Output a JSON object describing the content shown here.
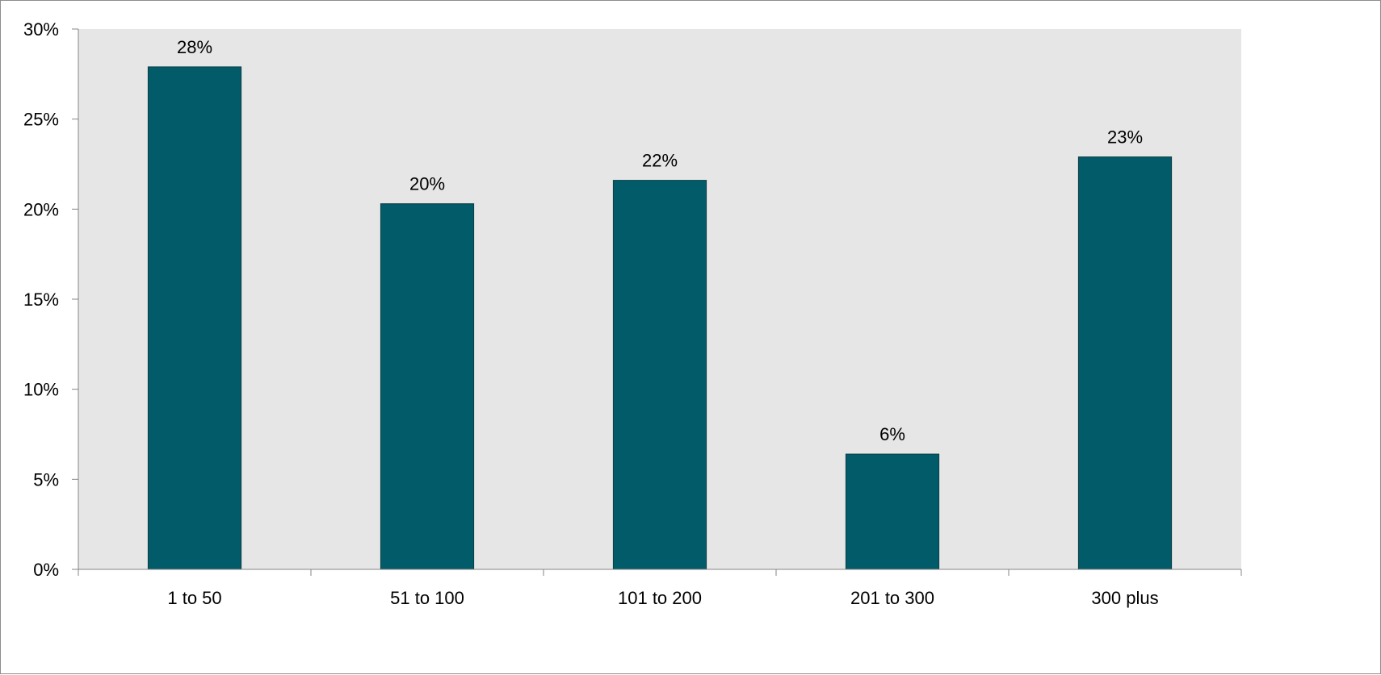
{
  "chart_data": {
    "type": "bar",
    "categories": [
      "1 to 50",
      "51 to 100",
      "101 to 200",
      "201 to 300",
      "300 plus"
    ],
    "values": [
      27.9,
      20.3,
      21.6,
      6.4,
      22.9
    ],
    "data_labels": [
      "28%",
      "20%",
      "22%",
      "6%",
      "23%"
    ],
    "title": "",
    "xlabel": "",
    "ylabel": "",
    "ylim": [
      0,
      30
    ],
    "y_ticks": [
      0,
      5,
      10,
      15,
      20,
      25,
      30
    ],
    "y_tick_labels": [
      "0%",
      "5%",
      "10%",
      "15%",
      "20%",
      "25%",
      "30%"
    ],
    "grid": false,
    "legend": "none",
    "colors": {
      "bar": "#025b69",
      "bar_edge": "#0b3f47",
      "plot_background": "#e6e6e6",
      "axis": "#868686"
    }
  }
}
